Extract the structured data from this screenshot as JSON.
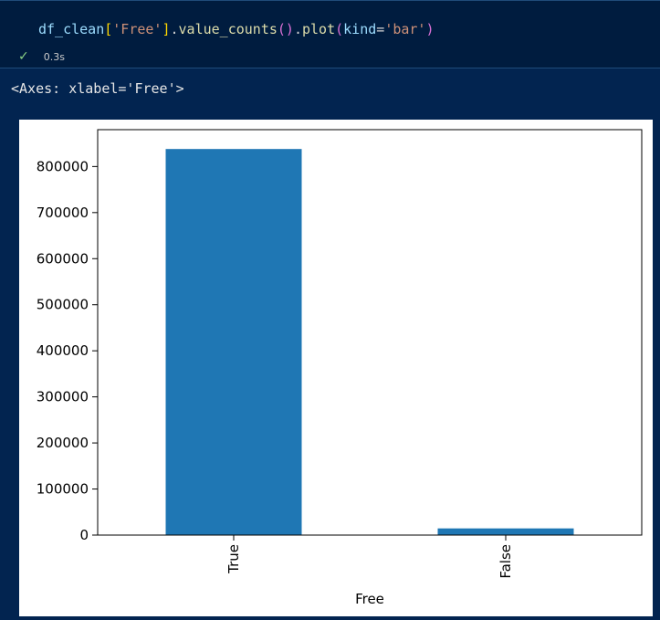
{
  "cell": {
    "code_tokens": [
      {
        "t": "df_clean",
        "c": "tok-var"
      },
      {
        "t": "[",
        "c": "tok-bracket"
      },
      {
        "t": "'Free'",
        "c": "tok-str"
      },
      {
        "t": "]",
        "c": "tok-bracket"
      },
      {
        "t": ".",
        "c": "tok-plain"
      },
      {
        "t": "value_counts",
        "c": "tok-fn"
      },
      {
        "t": "()",
        "c": "tok-paren"
      },
      {
        "t": ".",
        "c": "tok-plain"
      },
      {
        "t": "plot",
        "c": "tok-fn"
      },
      {
        "t": "(",
        "c": "tok-paren"
      },
      {
        "t": "kind",
        "c": "tok-var"
      },
      {
        "t": "=",
        "c": "tok-plain"
      },
      {
        "t": "'bar'",
        "c": "tok-str"
      },
      {
        "t": ")",
        "c": "tok-paren"
      }
    ],
    "status_icon": "check-icon",
    "status_glyph": "✓",
    "exec_time": "0.3s"
  },
  "output": {
    "text": "<Axes: xlabel='Free'>"
  },
  "colors": {
    "bar": "#1f77b4",
    "background": "#022450",
    "cell_background": "#001c3f"
  },
  "chart_data": {
    "type": "bar",
    "categories": [
      "True",
      "False"
    ],
    "values": [
      838000,
      14500
    ],
    "title": "",
    "xlabel": "Free",
    "ylabel": "",
    "ylim": [
      0,
      880000
    ],
    "yticks": [
      0,
      100000,
      200000,
      300000,
      400000,
      500000,
      600000,
      700000,
      800000
    ],
    "ytick_labels": [
      "0",
      "100000",
      "200000",
      "300000",
      "400000",
      "500000",
      "600000",
      "700000",
      "800000"
    ],
    "grid": false,
    "legend": "none"
  }
}
